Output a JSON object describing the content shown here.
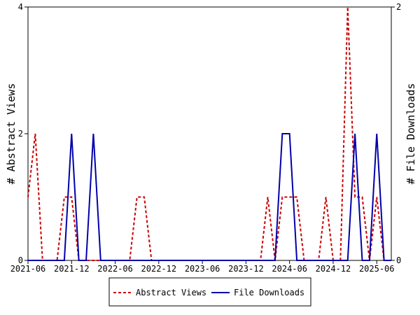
{
  "chart_data": {
    "type": "line",
    "categories": [
      "2021-06",
      null,
      null,
      null,
      null,
      null,
      "2021-12",
      null,
      null,
      null,
      null,
      null,
      "2022-06",
      null,
      null,
      null,
      null,
      null,
      "2022-12",
      null,
      null,
      null,
      null,
      null,
      "2023-06",
      null,
      null,
      null,
      null,
      null,
      "2023-12",
      null,
      null,
      null,
      null,
      null,
      "2024-06",
      null,
      null,
      null,
      null,
      null,
      "2024-12",
      null,
      null,
      null,
      null,
      null,
      "2025-06",
      null,
      null
    ],
    "series": [
      {
        "name": "Abstract Views",
        "color": "#cc0000",
        "dash": true,
        "axis": "y",
        "values": [
          1,
          2,
          0,
          0,
          0,
          1,
          1,
          0,
          0,
          0,
          0,
          0,
          0,
          0,
          0,
          1,
          1,
          0,
          0,
          0,
          0,
          0,
          0,
          0,
          0,
          0,
          0,
          0,
          0,
          0,
          0,
          0,
          0,
          1,
          0,
          1,
          1,
          1,
          0,
          0,
          0,
          1,
          0,
          0,
          4,
          1,
          1,
          0,
          1,
          0,
          0
        ]
      },
      {
        "name": "File Downloads",
        "color": "#0000aa",
        "dash": false,
        "axis": "y2",
        "values": [
          0,
          0,
          0,
          0,
          0,
          0,
          1,
          0,
          0,
          1,
          0,
          0,
          0,
          0,
          0,
          0,
          0,
          0,
          0,
          0,
          0,
          0,
          0,
          0,
          0,
          0,
          0,
          0,
          0,
          0,
          0,
          0,
          0,
          0,
          0,
          1,
          1,
          0,
          0,
          0,
          0,
          0,
          0,
          0,
          0,
          1,
          0,
          0,
          1,
          0,
          0
        ]
      }
    ],
    "ylabel": "# Abstract Views",
    "y2label": "# File Downloads",
    "ylim": [
      0,
      4
    ],
    "yticks": [
      0,
      2,
      4
    ],
    "y2lim": [
      0,
      2
    ],
    "y2ticks": [
      0,
      2
    ],
    "legend": "bottom"
  }
}
